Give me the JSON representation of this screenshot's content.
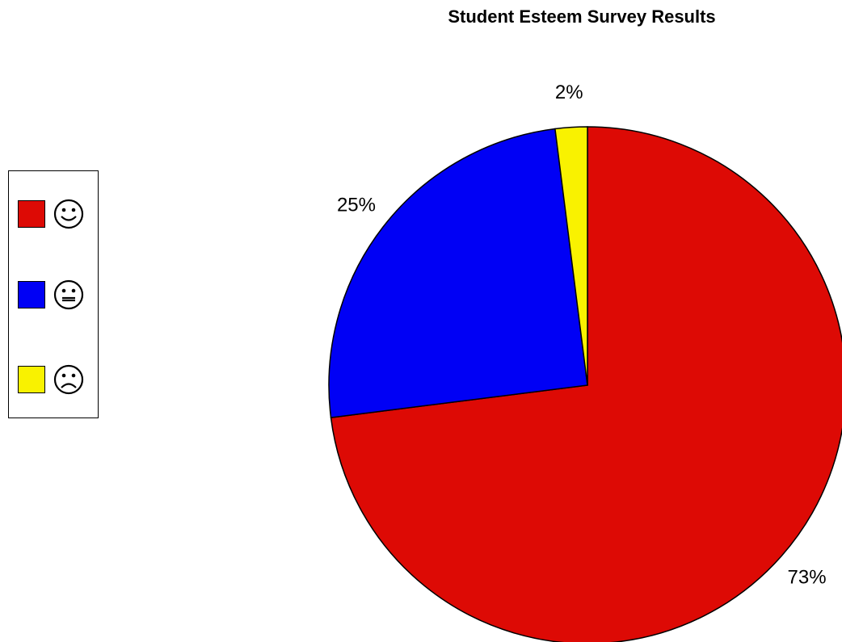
{
  "chart_data": {
    "type": "pie",
    "title": "Student Esteem Survey Results",
    "slices": [
      {
        "label": "73%",
        "value": 73,
        "color": "#dd0a05",
        "legend_icon": "happy-face-icon"
      },
      {
        "label": "25%",
        "value": 25,
        "color": "#0000f5",
        "legend_icon": "neutral-face-icon"
      },
      {
        "label": "2%",
        "value": 2,
        "color": "#f9f200",
        "legend_icon": "sad-face-icon"
      }
    ],
    "start": "12 o'clock",
    "direction": "clockwise",
    "legend_position": "left"
  }
}
